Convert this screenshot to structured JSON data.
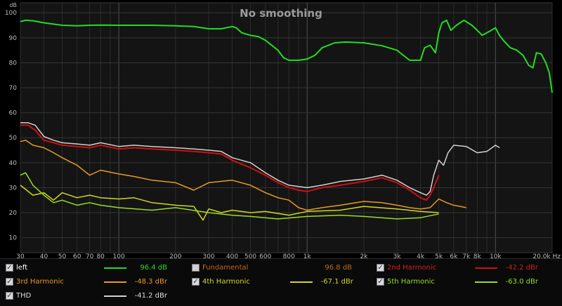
{
  "chart_data": {
    "type": "line",
    "title": "No smoothing",
    "ylabel": "dB",
    "xlabel": "Hz",
    "x_scale": "log",
    "xlim": [
      30,
      20000
    ],
    "ylim": [
      4,
      104
    ],
    "grid": true,
    "x_ticks": [
      {
        "v": 30,
        "t": "30"
      },
      {
        "v": 40,
        "t": "40"
      },
      {
        "v": 50,
        "t": "50"
      },
      {
        "v": 60,
        "t": "60"
      },
      {
        "v": 70,
        "t": "70"
      },
      {
        "v": 80,
        "t": "80"
      },
      {
        "v": 100,
        "t": "100"
      },
      {
        "v": 200,
        "t": "200"
      },
      {
        "v": 300,
        "t": "300"
      },
      {
        "v": 400,
        "t": "400"
      },
      {
        "v": 500,
        "t": "500"
      },
      {
        "v": 600,
        "t": "600"
      },
      {
        "v": 800,
        "t": "800"
      },
      {
        "v": 1000,
        "t": "1k"
      },
      {
        "v": 2000,
        "t": "2k"
      },
      {
        "v": 3000,
        "t": "3k"
      },
      {
        "v": 4000,
        "t": "4k"
      },
      {
        "v": 5000,
        "t": "5k"
      },
      {
        "v": 6000,
        "t": "6k"
      },
      {
        "v": 7000,
        "t": "7k"
      },
      {
        "v": 8000,
        "t": "8k"
      },
      {
        "v": 10000,
        "t": "10k"
      },
      {
        "v": 20000,
        "t": "20.0k Hz"
      }
    ],
    "y_ticks": [
      10,
      20,
      30,
      40,
      50,
      60,
      70,
      80,
      90,
      100
    ],
    "series": [
      {
        "name": "left",
        "color": "#22dd22",
        "width": 2,
        "points": [
          [
            30,
            96.5
          ],
          [
            32,
            97
          ],
          [
            35,
            96.8
          ],
          [
            40,
            96
          ],
          [
            50,
            95
          ],
          [
            60,
            94.8
          ],
          [
            70,
            95
          ],
          [
            80,
            95.1
          ],
          [
            100,
            95
          ],
          [
            120,
            95
          ],
          [
            150,
            95
          ],
          [
            200,
            94.8
          ],
          [
            250,
            94.5
          ],
          [
            300,
            93.6
          ],
          [
            350,
            93.6
          ],
          [
            400,
            94.5
          ],
          [
            420,
            94
          ],
          [
            450,
            92
          ],
          [
            500,
            91
          ],
          [
            550,
            90.5
          ],
          [
            600,
            89
          ],
          [
            700,
            85
          ],
          [
            750,
            82
          ],
          [
            800,
            81
          ],
          [
            900,
            81
          ],
          [
            1000,
            81.5
          ],
          [
            1100,
            83
          ],
          [
            1200,
            86
          ],
          [
            1400,
            88
          ],
          [
            1600,
            88.3
          ],
          [
            2000,
            88
          ],
          [
            2500,
            86.8
          ],
          [
            3000,
            85
          ],
          [
            3500,
            81
          ],
          [
            4000,
            81
          ],
          [
            4200,
            86
          ],
          [
            4500,
            87
          ],
          [
            4800,
            84
          ],
          [
            5000,
            92
          ],
          [
            5200,
            96
          ],
          [
            5500,
            97
          ],
          [
            5800,
            93
          ],
          [
            6200,
            95
          ],
          [
            6800,
            97
          ],
          [
            7500,
            95
          ],
          [
            8000,
            93
          ],
          [
            8500,
            91
          ],
          [
            9000,
            92
          ],
          [
            9500,
            93
          ],
          [
            10000,
            94
          ],
          [
            10500,
            91
          ],
          [
            11000,
            89
          ],
          [
            12000,
            86
          ],
          [
            13000,
            85
          ],
          [
            14000,
            83
          ],
          [
            15000,
            79
          ],
          [
            15800,
            78
          ],
          [
            16500,
            84
          ],
          [
            17500,
            83.5
          ],
          [
            18500,
            80
          ],
          [
            19300,
            76
          ],
          [
            20000,
            68
          ]
        ]
      },
      {
        "name": "2nd Harmonic",
        "color": "#cc1111",
        "width": 2,
        "points": [
          [
            30,
            55
          ],
          [
            33,
            55
          ],
          [
            36,
            53
          ],
          [
            40,
            49
          ],
          [
            45,
            48
          ],
          [
            50,
            47
          ],
          [
            60,
            46.5
          ],
          [
            70,
            46
          ],
          [
            80,
            47
          ],
          [
            100,
            45.5
          ],
          [
            120,
            46
          ],
          [
            150,
            45.5
          ],
          [
            200,
            45
          ],
          [
            250,
            44.5
          ],
          [
            300,
            44
          ],
          [
            350,
            43.5
          ],
          [
            400,
            41
          ],
          [
            500,
            38
          ],
          [
            600,
            35
          ],
          [
            700,
            32
          ],
          [
            800,
            30
          ],
          [
            900,
            29
          ],
          [
            1000,
            28.5
          ],
          [
            1200,
            30
          ],
          [
            1500,
            31
          ],
          [
            2000,
            32.5
          ],
          [
            2500,
            34
          ],
          [
            3000,
            32
          ],
          [
            3500,
            29
          ],
          [
            4000,
            26
          ],
          [
            4300,
            25
          ],
          [
            4500,
            27
          ],
          [
            4700,
            30
          ],
          [
            5000,
            35
          ]
        ]
      },
      {
        "name": "3rd Harmonic",
        "color": "#e89a22",
        "width": 1.5,
        "points": [
          [
            30,
            48.5
          ],
          [
            32,
            49
          ],
          [
            35,
            47
          ],
          [
            40,
            46
          ],
          [
            45,
            44
          ],
          [
            50,
            42
          ],
          [
            60,
            39
          ],
          [
            70,
            35
          ],
          [
            80,
            37
          ],
          [
            100,
            35.5
          ],
          [
            120,
            34.5
          ],
          [
            150,
            33
          ],
          [
            200,
            32
          ],
          [
            250,
            29
          ],
          [
            300,
            32
          ],
          [
            400,
            33
          ],
          [
            500,
            31
          ],
          [
            600,
            28
          ],
          [
            700,
            26
          ],
          [
            800,
            25
          ],
          [
            900,
            22
          ],
          [
            1000,
            21
          ],
          [
            1200,
            22
          ],
          [
            1500,
            23
          ],
          [
            2000,
            24.5
          ],
          [
            2500,
            24
          ],
          [
            3000,
            23
          ],
          [
            3500,
            22
          ],
          [
            4000,
            21.5
          ],
          [
            4500,
            22
          ],
          [
            5000,
            25.5
          ],
          [
            5500,
            24
          ],
          [
            6000,
            23
          ],
          [
            6500,
            22.5
          ],
          [
            7000,
            22
          ]
        ]
      },
      {
        "name": "4th Harmonic",
        "color": "#d2d722",
        "width": 1.5,
        "points": [
          [
            30,
            31
          ],
          [
            35,
            27
          ],
          [
            40,
            28
          ],
          [
            45,
            25
          ],
          [
            50,
            28
          ],
          [
            60,
            26
          ],
          [
            70,
            27
          ],
          [
            80,
            26
          ],
          [
            100,
            25.5
          ],
          [
            120,
            26
          ],
          [
            150,
            24
          ],
          [
            200,
            23
          ],
          [
            250,
            22.5
          ],
          [
            280,
            17
          ],
          [
            300,
            21.5
          ],
          [
            350,
            20
          ],
          [
            400,
            21
          ],
          [
            500,
            20
          ],
          [
            600,
            20.5
          ],
          [
            800,
            19
          ],
          [
            1000,
            20.5
          ],
          [
            1500,
            21
          ],
          [
            2000,
            22.5
          ],
          [
            3000,
            21.5
          ],
          [
            4000,
            20.5
          ],
          [
            5000,
            20
          ]
        ]
      },
      {
        "name": "5th Harmonic",
        "color": "#99dd22",
        "width": 1.5,
        "points": [
          [
            30,
            35
          ],
          [
            32,
            36
          ],
          [
            35,
            31
          ],
          [
            40,
            27
          ],
          [
            45,
            24
          ],
          [
            50,
            25
          ],
          [
            60,
            23
          ],
          [
            70,
            24
          ],
          [
            80,
            23
          ],
          [
            100,
            22
          ],
          [
            150,
            21
          ],
          [
            200,
            22
          ],
          [
            300,
            20
          ],
          [
            400,
            19
          ],
          [
            500,
            18.5
          ],
          [
            700,
            17.5
          ],
          [
            1000,
            18.5
          ],
          [
            1500,
            19
          ],
          [
            2000,
            18.5
          ],
          [
            3000,
            17.5
          ],
          [
            4000,
            18
          ],
          [
            5000,
            19.5
          ]
        ]
      },
      {
        "name": "THD",
        "color": "#d8cfcf",
        "width": 1.5,
        "points": [
          [
            30,
            56
          ],
          [
            33,
            56
          ],
          [
            36,
            55
          ],
          [
            40,
            50.5
          ],
          [
            45,
            49
          ],
          [
            50,
            48
          ],
          [
            60,
            47.5
          ],
          [
            70,
            47
          ],
          [
            80,
            48
          ],
          [
            100,
            46.5
          ],
          [
            120,
            47
          ],
          [
            150,
            46.5
          ],
          [
            200,
            46
          ],
          [
            250,
            45.5
          ],
          [
            300,
            45
          ],
          [
            350,
            44.5
          ],
          [
            400,
            42
          ],
          [
            500,
            40
          ],
          [
            600,
            36
          ],
          [
            700,
            33
          ],
          [
            800,
            31
          ],
          [
            900,
            30.5
          ],
          [
            1000,
            30
          ],
          [
            1200,
            31
          ],
          [
            1500,
            32.5
          ],
          [
            2000,
            33.5
          ],
          [
            2500,
            35
          ],
          [
            3000,
            33
          ],
          [
            3500,
            30
          ],
          [
            4000,
            28
          ],
          [
            4300,
            27
          ],
          [
            4500,
            28.5
          ],
          [
            4700,
            35
          ],
          [
            5000,
            41
          ],
          [
            5300,
            39
          ],
          [
            5600,
            44
          ],
          [
            6000,
            47
          ],
          [
            7000,
            46.5
          ],
          [
            8000,
            44
          ],
          [
            9000,
            44.5
          ],
          [
            10000,
            47
          ],
          [
            10500,
            46
          ]
        ]
      }
    ]
  },
  "legend": [
    {
      "label": "left",
      "value": "96.4 dB",
      "checked": true,
      "color": "#22dd22",
      "label_color": "#ffffff",
      "value_color": "#22dd22"
    },
    {
      "label": "Fundamental",
      "value": "96.8 dB",
      "checked": false,
      "color": "#b36a1a",
      "label_color": "#c0681a",
      "value_color": "#c0681a"
    },
    {
      "label": "2nd Harmonic",
      "value": "-42.2 dBr",
      "checked": true,
      "color": "#cc1111",
      "label_color": "#cc2020",
      "value_color": "#cc2020"
    },
    {
      "label": "3rd Harmonic",
      "value": "-48.3 dBr",
      "checked": true,
      "color": "#e89a22",
      "label_color": "#e89a22",
      "value_color": "#e89a22"
    },
    {
      "label": "4th Harmonic",
      "value": "-67.1 dBr",
      "checked": true,
      "color": "#d2d722",
      "label_color": "#d2d722",
      "value_color": "#d2d722"
    },
    {
      "label": "5th Harmonic",
      "value": "-63.0 dBr",
      "checked": true,
      "color": "#99dd22",
      "label_color": "#99dd22",
      "value_color": "#99dd22"
    },
    {
      "label": "THD",
      "value": "-41.2 dBr",
      "checked": true,
      "color": "#d8cfcf",
      "label_color": "#dddddd",
      "value_color": "#dddddd"
    }
  ]
}
